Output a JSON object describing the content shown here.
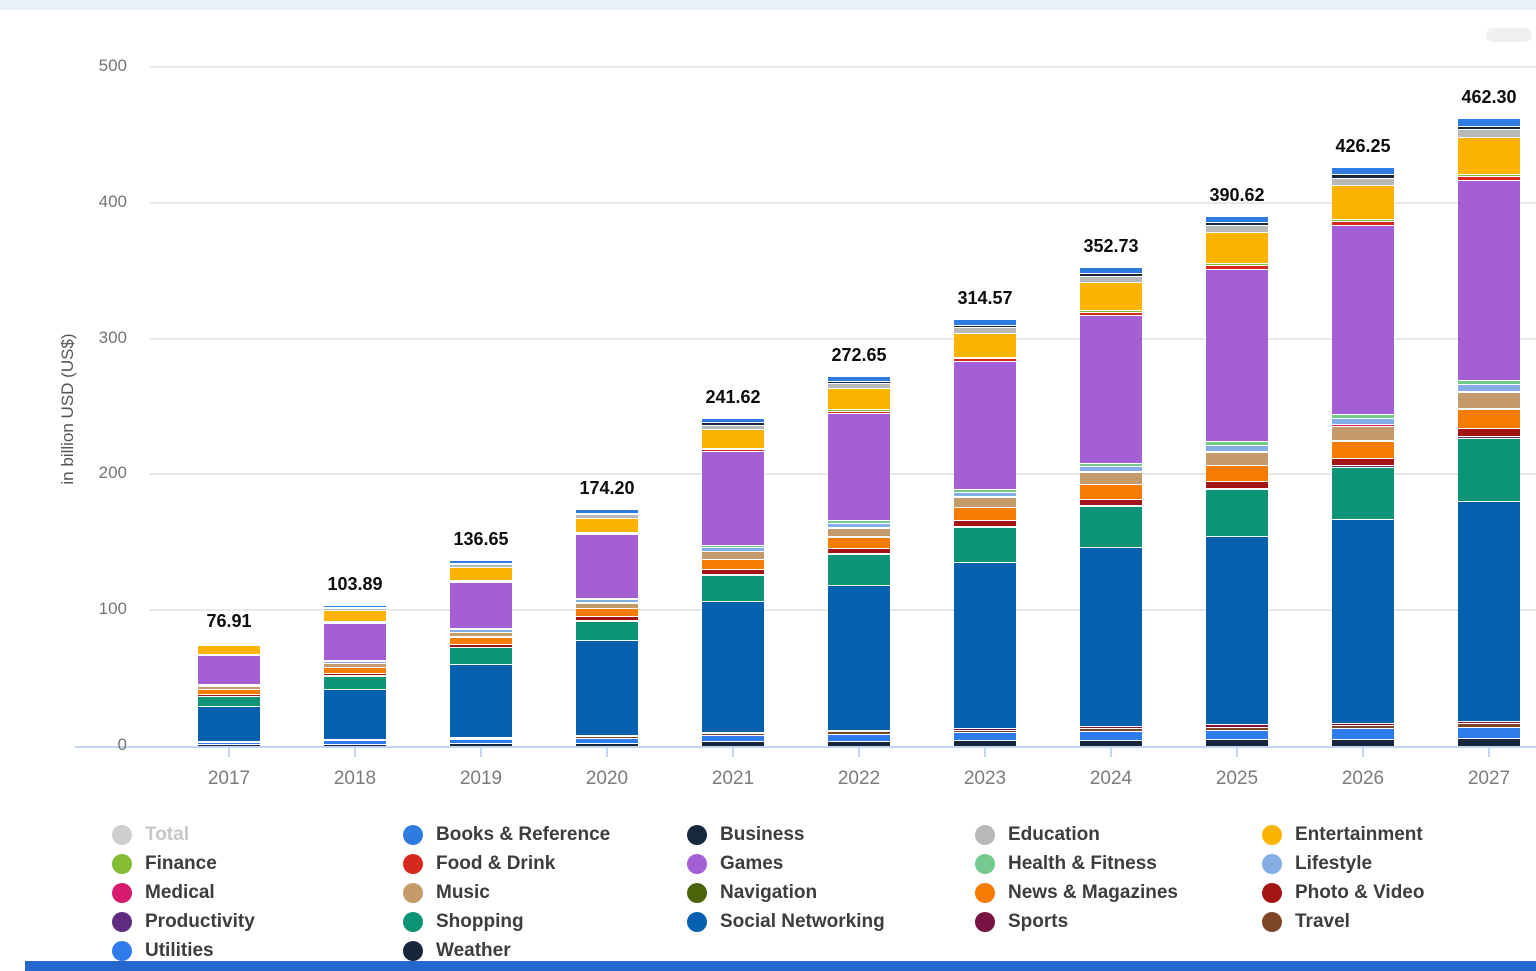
{
  "page": {
    "top_strip_color": "#e9f2fb",
    "bottom_strip_color": "#2667cf"
  },
  "chart_data": {
    "type": "bar",
    "stacked": true,
    "ylabel": "in billion USD (US$)",
    "ylim": [
      0,
      500
    ],
    "y_ticks": [
      "0",
      "100",
      "200",
      "300",
      "400",
      "500"
    ],
    "grid": true,
    "legend_position": "bottom",
    "categories": [
      "2017",
      "2018",
      "2019",
      "2020",
      "2021",
      "2022",
      "2023",
      "2024",
      "2025",
      "2026",
      "2027"
    ],
    "totals_display": [
      "76.91",
      "103.89",
      "136.65",
      "174.20",
      "241.62",
      "272.65",
      "314.57",
      "352.73",
      "390.62",
      "426.25",
      "462.30"
    ],
    "totals": [
      76.91,
      103.89,
      136.65,
      174.2,
      241.62,
      272.65,
      314.57,
      352.73,
      390.62,
      426.25,
      462.3
    ],
    "stack_order_top_to_bottom": [
      "Books & Reference",
      "Business",
      "Education",
      "Entertainment",
      "Finance",
      "Food & Drink",
      "Games",
      "Health & Fitness",
      "Lifestyle",
      "Medical",
      "Music",
      "Navigation",
      "News & Magazines",
      "Photo & Video",
      "Productivity",
      "Shopping",
      "Social Networking",
      "Sports",
      "Travel",
      "Utilities",
      "Weather"
    ],
    "series": [
      {
        "name": "Books & Reference",
        "color": "#2e7ce0",
        "values": [
          1.2,
          1.6,
          2.0,
          2.5,
          3.4,
          3.8,
          4.3,
          4.7,
          5.0,
          5.3,
          5.6
        ]
      },
      {
        "name": "Business",
        "color": "#16283c",
        "values": [
          0.5,
          0.7,
          0.9,
          1.1,
          1.5,
          1.7,
          1.9,
          2.1,
          2.3,
          2.5,
          2.7
        ]
      },
      {
        "name": "Education",
        "color": "#b8b8b8",
        "values": [
          1.2,
          1.6,
          2.0,
          2.5,
          3.4,
          3.8,
          4.2,
          4.6,
          5.0,
          5.3,
          5.6
        ]
      },
      {
        "name": "Entertainment",
        "color": "#fcb400",
        "values": [
          6.0,
          8.0,
          9.5,
          10.5,
          14.0,
          15.5,
          17.5,
          20.5,
          23.0,
          25.0,
          27.0
        ]
      },
      {
        "name": "Finance",
        "color": "#84bd32",
        "values": [
          0.3,
          0.4,
          0.5,
          0.6,
          0.8,
          0.9,
          1.0,
          1.2,
          1.4,
          1.5,
          1.7
        ]
      },
      {
        "name": "Food & Drink",
        "color": "#d6291e",
        "values": [
          0.5,
          0.7,
          0.9,
          1.1,
          1.5,
          1.7,
          1.9,
          2.2,
          2.5,
          2.7,
          2.9
        ]
      },
      {
        "name": "Games",
        "color": "#a55fd5",
        "values": [
          21.36,
          27.64,
          34.0,
          46.75,
          68.72,
          78.85,
          94.37,
          108.98,
          127.17,
          139.8,
          147.55
        ]
      },
      {
        "name": "Health & Fitness",
        "color": "#74c98f",
        "values": [
          0.6,
          0.8,
          1.0,
          1.2,
          1.7,
          1.9,
          2.2,
          2.4,
          2.7,
          2.9,
          3.1
        ]
      },
      {
        "name": "Lifestyle",
        "color": "#85ade5",
        "values": [
          1.0,
          1.3,
          1.6,
          2.0,
          2.8,
          3.1,
          3.5,
          3.8,
          4.2,
          4.5,
          4.8
        ]
      },
      {
        "name": "Medical",
        "color": "#d61a6e",
        "values": [
          0.2,
          0.25,
          0.3,
          0.35,
          0.5,
          0.55,
          0.6,
          0.7,
          0.75,
          0.8,
          0.85
        ]
      },
      {
        "name": "Music",
        "color": "#c59a6a",
        "values": [
          2.0,
          2.5,
          3.2,
          4.0,
          5.5,
          6.2,
          7.0,
          8.5,
          9.5,
          10.5,
          11.5
        ]
      },
      {
        "name": "Navigation",
        "color": "#4b640a",
        "values": [
          0.15,
          0.2,
          0.25,
          0.3,
          0.4,
          0.45,
          0.5,
          0.55,
          0.6,
          0.65,
          0.7
        ]
      },
      {
        "name": "News & Magazines",
        "color": "#f57c00",
        "values": [
          3.7,
          4.5,
          5.5,
          6.0,
          7.5,
          8.5,
          9.5,
          10.5,
          11.5,
          13.0,
          14.5
        ]
      },
      {
        "name": "Photo & Video",
        "color": "#a31515",
        "values": [
          1.2,
          1.6,
          2.0,
          2.4,
          3.2,
          3.6,
          4.0,
          4.4,
          4.8,
          5.2,
          5.6
        ]
      },
      {
        "name": "Productivity",
        "color": "#5e2b7e",
        "values": [
          0.3,
          0.4,
          0.5,
          0.6,
          0.8,
          0.9,
          1.0,
          1.2,
          1.4,
          1.5,
          1.7
        ]
      },
      {
        "name": "Shopping",
        "color": "#0d9477",
        "values": [
          7.3,
          9.5,
          12.0,
          14.5,
          19.5,
          22.5,
          26.0,
          30.0,
          34.0,
          38.0,
          46.0
        ]
      },
      {
        "name": "Social Networking",
        "color": "#0561b0",
        "values": [
          25.5,
          37.0,
          54.0,
          70.0,
          96.0,
          107.0,
          122.0,
          132.0,
          139.0,
          150.0,
          162.0
        ]
      },
      {
        "name": "Sports",
        "color": "#7a1243",
        "values": [
          0.4,
          0.5,
          0.6,
          0.8,
          1.0,
          1.1,
          1.3,
          1.4,
          1.6,
          1.7,
          1.9
        ]
      },
      {
        "name": "Travel",
        "color": "#7d4627",
        "values": [
          0.5,
          0.7,
          0.9,
          1.0,
          1.4,
          1.6,
          1.8,
          2.0,
          2.2,
          2.4,
          2.6
        ]
      },
      {
        "name": "Utilities",
        "color": "#2e7ceb",
        "values": [
          1.8,
          2.4,
          3.0,
          3.6,
          4.8,
          5.4,
          6.0,
          6.6,
          7.2,
          7.8,
          8.4
        ]
      },
      {
        "name": "Weather",
        "color": "#16263c",
        "values": [
          1.2,
          1.6,
          2.0,
          2.4,
          3.2,
          3.6,
          4.0,
          4.4,
          4.8,
          5.2,
          5.6
        ]
      }
    ],
    "legend": [
      {
        "label": "Total",
        "color": "#cfcfcf",
        "muted": true
      },
      {
        "label": "Books & Reference",
        "color": "#2e7ce0",
        "muted": false
      },
      {
        "label": "Business",
        "color": "#16283c",
        "muted": false
      },
      {
        "label": "Education",
        "color": "#b8b8b8",
        "muted": false
      },
      {
        "label": "Entertainment",
        "color": "#fcb400",
        "muted": false
      },
      {
        "label": "Finance",
        "color": "#84bd32",
        "muted": false
      },
      {
        "label": "Food & Drink",
        "color": "#d6291e",
        "muted": false
      },
      {
        "label": "Games",
        "color": "#a55fd5",
        "muted": false
      },
      {
        "label": "Health & Fitness",
        "color": "#74c98f",
        "muted": false
      },
      {
        "label": "Lifestyle",
        "color": "#85ade5",
        "muted": false
      },
      {
        "label": "Medical",
        "color": "#d61a6e",
        "muted": false
      },
      {
        "label": "Music",
        "color": "#c59a6a",
        "muted": false
      },
      {
        "label": "Navigation",
        "color": "#4b640a",
        "muted": false
      },
      {
        "label": "News & Magazines",
        "color": "#f57c00",
        "muted": false
      },
      {
        "label": "Photo & Video",
        "color": "#a31515",
        "muted": false
      },
      {
        "label": "Productivity",
        "color": "#5e2b7e",
        "muted": false
      },
      {
        "label": "Shopping",
        "color": "#0d9477",
        "muted": false
      },
      {
        "label": "Social Networking",
        "color": "#0561b0",
        "muted": false
      },
      {
        "label": "Sports",
        "color": "#7a1243",
        "muted": false
      },
      {
        "label": "Travel",
        "color": "#7d4627",
        "muted": false
      },
      {
        "label": "Utilities",
        "color": "#2e7ceb",
        "muted": false
      },
      {
        "label": "Weather",
        "color": "#16263c",
        "muted": false
      }
    ]
  }
}
